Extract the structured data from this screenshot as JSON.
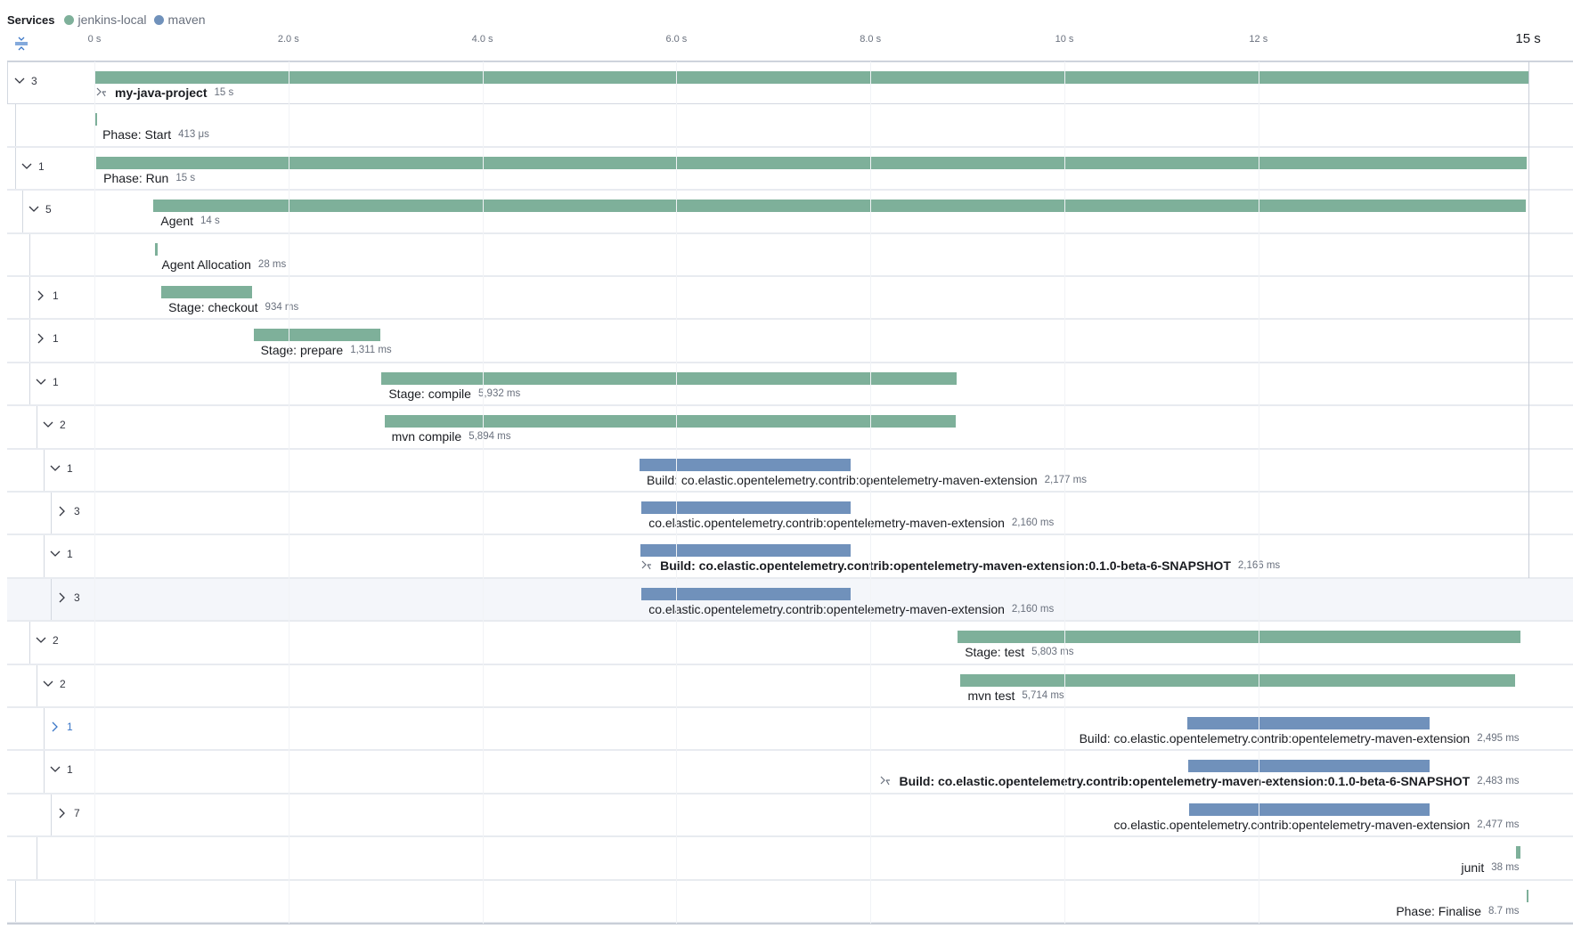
{
  "header": {
    "services_label": "Services",
    "services": [
      {
        "name": "jenkins-local",
        "color": "#7eb09a"
      },
      {
        "name": "maven",
        "color": "#7091bb"
      }
    ]
  },
  "axis": {
    "ticks": [
      {
        "value": 0,
        "label": "0 s"
      },
      {
        "value": 2,
        "label": "2.0 s"
      },
      {
        "value": 4,
        "label": "4.0 s"
      },
      {
        "value": 6,
        "label": "6.0 s"
      },
      {
        "value": 8,
        "label": "8.0 s"
      },
      {
        "value": 10,
        "label": "10 s"
      },
      {
        "value": 12,
        "label": "12 s"
      }
    ],
    "end_label": "15 s",
    "end_value": 14.78
  },
  "colors": {
    "jenkins-local": "#7eb09a",
    "maven": "#7091bb",
    "highlight_row": "#f4f6fa"
  },
  "rows": [
    {
      "count": "3",
      "expanded": true,
      "depth": 0,
      "name": "my-java-project",
      "duration": "15 s",
      "service": "jenkins-local",
      "start": 0,
      "end": 14.78,
      "bold": true,
      "icon": "merge-icon",
      "align": "left"
    },
    {
      "count": "",
      "depth": 1,
      "name": "Phase: Start",
      "duration": "413 μs",
      "service": "jenkins-local",
      "start": 0.01,
      "end": 0.0104,
      "align": "left"
    },
    {
      "count": "1",
      "expanded": true,
      "depth": 1,
      "name": "Phase: Run",
      "duration": "15 s",
      "service": "jenkins-local",
      "start": 0.02,
      "end": 14.77,
      "align": "left"
    },
    {
      "count": "5",
      "expanded": true,
      "depth": 2,
      "name": "Agent",
      "duration": "14 s",
      "service": "jenkins-local",
      "start": 0.61,
      "end": 14.76,
      "align": "left"
    },
    {
      "count": "",
      "depth": 3,
      "name": "Agent Allocation",
      "duration": "28 ms",
      "service": "jenkins-local",
      "start": 0.62,
      "end": 0.648,
      "align": "left"
    },
    {
      "count": "1",
      "expanded": false,
      "depth": 3,
      "name": "Stage: checkout",
      "duration": "934 ms",
      "service": "jenkins-local",
      "start": 0.69,
      "end": 1.624,
      "align": "left"
    },
    {
      "count": "1",
      "expanded": false,
      "depth": 3,
      "name": "Stage: prepare",
      "duration": "1,311 ms",
      "service": "jenkins-local",
      "start": 1.64,
      "end": 2.951,
      "align": "left"
    },
    {
      "count": "1",
      "expanded": true,
      "depth": 3,
      "name": "Stage: compile",
      "duration": "5,932 ms",
      "service": "jenkins-local",
      "start": 2.96,
      "end": 8.892,
      "align": "left"
    },
    {
      "count": "2",
      "expanded": true,
      "depth": 4,
      "name": "mvn compile",
      "duration": "5,894 ms",
      "service": "jenkins-local",
      "start": 2.99,
      "end": 8.884,
      "align": "left"
    },
    {
      "count": "1",
      "expanded": true,
      "depth": 5,
      "name": "Build: co.elastic.opentelemetry.contrib:opentelemetry-maven-extension",
      "duration": "2,177 ms",
      "service": "maven",
      "start": 5.62,
      "end": 7.797,
      "align": "left"
    },
    {
      "count": "3",
      "expanded": false,
      "depth": 6,
      "name": "co.elastic.opentelemetry.contrib:opentelemetry-maven-extension",
      "duration": "2,160 ms",
      "service": "maven",
      "start": 5.64,
      "end": 7.8,
      "align": "left"
    },
    {
      "count": "1",
      "expanded": true,
      "depth": 5,
      "name": "Build: co.elastic.opentelemetry.contrib:opentelemetry-maven-extension:0.1.0-beta-6-SNAPSHOT",
      "duration": "2,166 ms",
      "service": "maven",
      "start": 5.63,
      "end": 7.796,
      "bold": true,
      "icon": "merge-icon",
      "align": "left"
    },
    {
      "count": "3",
      "expanded": false,
      "depth": 6,
      "name": "co.elastic.opentelemetry.contrib:opentelemetry-maven-extension",
      "duration": "2,160 ms",
      "service": "maven",
      "start": 5.64,
      "end": 7.8,
      "align": "left",
      "highlighted": true
    },
    {
      "count": "2",
      "expanded": true,
      "depth": 3,
      "name": "Stage: test",
      "duration": "5,803 ms",
      "service": "jenkins-local",
      "start": 8.9,
      "end": 14.703,
      "align": "left"
    },
    {
      "count": "2",
      "expanded": true,
      "depth": 4,
      "name": "mvn test",
      "duration": "5,714 ms",
      "service": "jenkins-local",
      "start": 8.93,
      "end": 14.644,
      "align": "left"
    },
    {
      "count": "1",
      "expanded": false,
      "depth": 5,
      "name": "Build: co.elastic.opentelemetry.contrib:opentelemetry-maven-extension",
      "duration": "2,495 ms",
      "service": "maven",
      "start": 11.27,
      "end": 13.765,
      "align": "right",
      "hover": true
    },
    {
      "count": "1",
      "expanded": true,
      "depth": 5,
      "name": "Build: co.elastic.opentelemetry.contrib:opentelemetry-maven-extension:0.1.0-beta-6-SNAPSHOT",
      "duration": "2,483 ms",
      "service": "maven",
      "start": 11.28,
      "end": 13.763,
      "bold": true,
      "icon": "merge-icon",
      "align": "right"
    },
    {
      "count": "7",
      "expanded": false,
      "depth": 6,
      "name": "co.elastic.opentelemetry.contrib:opentelemetry-maven-extension",
      "duration": "2,477 ms",
      "service": "maven",
      "start": 11.29,
      "end": 13.767,
      "align": "right"
    },
    {
      "count": "",
      "depth": 4,
      "name": "junit",
      "duration": "38 ms",
      "service": "jenkins-local",
      "start": 14.66,
      "end": 14.698,
      "align": "right"
    },
    {
      "count": "",
      "depth": 1,
      "name": "Phase: Finalise",
      "duration": "8.7 ms",
      "service": "jenkins-local",
      "start": 14.77,
      "end": 14.779,
      "align": "right"
    }
  ]
}
